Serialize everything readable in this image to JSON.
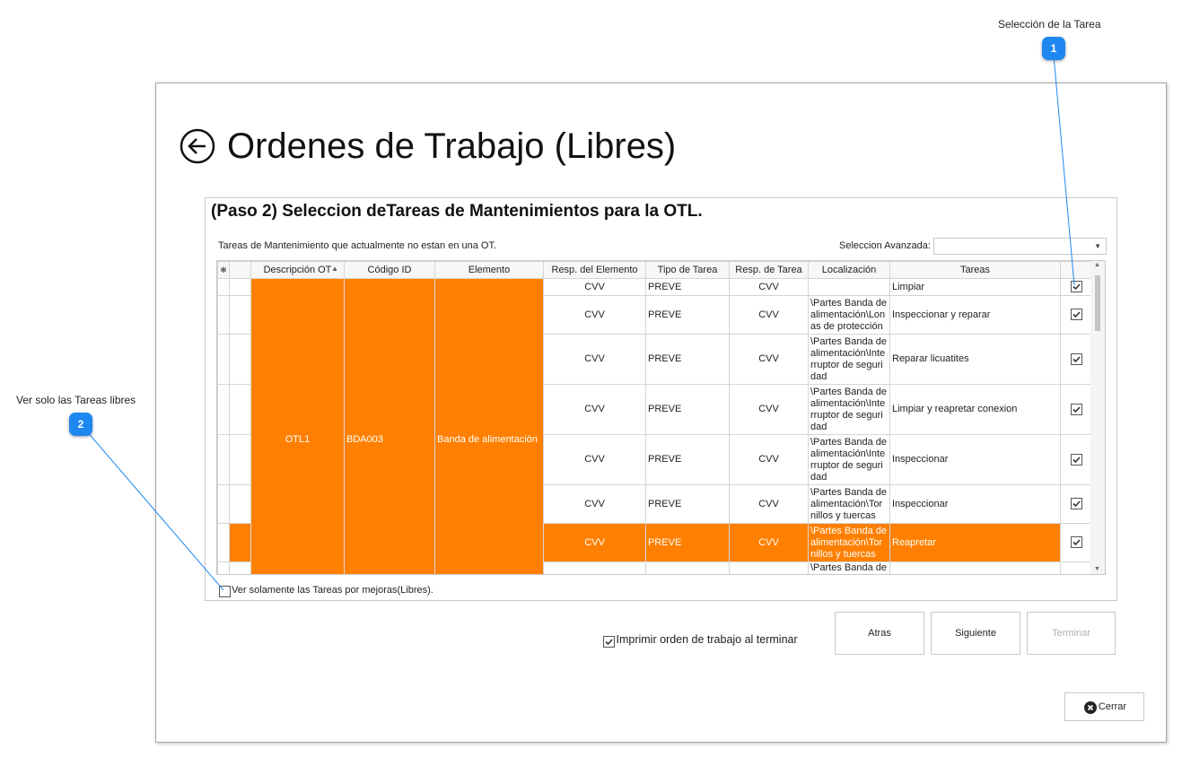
{
  "callouts": [
    {
      "number": "1",
      "label": "Selección de la Tarea"
    },
    {
      "number": "2",
      "label": "Ver solo las Tareas libres"
    }
  ],
  "window": {
    "title": "Ordenes de Trabajo (Libres)"
  },
  "step": {
    "heading": "(Paso 2)  Seleccion deTareas de Mantenimientos para la OTL.",
    "description": "Tareas de Mantenimiento que actualmente no estan en una OT.",
    "advanced_label": "Seleccion Avanzada:"
  },
  "grid": {
    "highlight_color": "#ff8000",
    "columns": [
      "Descripción OT",
      "Código ID",
      "Elemento",
      "Resp. del Elemento",
      "Tipo de Tarea",
      "Resp.  de Tarea",
      "Localización",
      "Tareas"
    ],
    "group": {
      "descripcion": "OTL1",
      "codigo": "BDA003",
      "elemento": "Banda de alimentación"
    },
    "rows": [
      {
        "resp_elemento": "CVV",
        "tipo": "PREVE",
        "resp_tarea": "CVV",
        "tarea": "Limpiar",
        "checked": true
      },
      {
        "resp_elemento": "CVV",
        "tipo": "PREVE",
        "resp_tarea": "CVV",
        "localizacion": "\\Partes Banda de alimentación\\Lonas de protección",
        "tarea": "Inspeccionar y reparar",
        "checked": true
      },
      {
        "resp_elemento": "CVV",
        "tipo": "PREVE",
        "resp_tarea": "CVV",
        "localizacion": "\\Partes Banda de alimentación\\Interruptor de seguridad",
        "tarea": "Reparar licuatites",
        "checked": true
      },
      {
        "resp_elemento": "CVV",
        "tipo": "PREVE",
        "resp_tarea": "CVV",
        "localizacion": "\\Partes Banda de alimentación\\Interruptor de seguridad",
        "tarea": "Limpiar y reapretar conexion",
        "checked": true
      },
      {
        "resp_elemento": "CVV",
        "tipo": "PREVE",
        "resp_tarea": "CVV",
        "localizacion": "\\Partes Banda de alimentación\\Interruptor de seguridad",
        "tarea": "Inspeccionar",
        "checked": true
      },
      {
        "resp_elemento": "CVV",
        "tipo": "PREVE",
        "resp_tarea": "CVV",
        "localizacion": "\\Partes Banda de alimentación\\Tornillos y tuercas",
        "tarea": "Inspeccionar",
        "checked": true
      },
      {
        "resp_elemento": "CVV",
        "tipo": "PREVE",
        "resp_tarea": "CVV",
        "localizacion": "\\Partes Banda de alimentación\\Tornillos y tuercas",
        "tarea": "Reapretar",
        "checked": true,
        "selected": true
      },
      {
        "localizacion": "\\Partes Banda de"
      }
    ]
  },
  "options": {
    "only_free": {
      "label": "Ver solamente las Tareas por mejoras(Libres).",
      "checked": false
    },
    "print": {
      "label": "Imprimir orden de trabajo al terminar",
      "checked": true
    }
  },
  "buttons": {
    "back": "Atras",
    "next": "Siguiente",
    "finish": "Terminar",
    "close": "Cerrar"
  }
}
